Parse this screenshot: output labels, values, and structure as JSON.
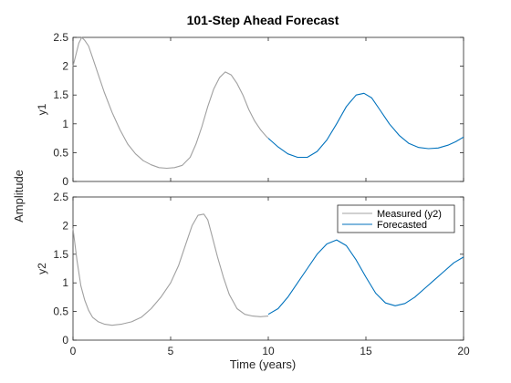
{
  "chart_data": {
    "type": "line",
    "title": "101-Step Ahead Forecast",
    "xlabel": "Time (years)",
    "shared_ylabel": "Amplitude",
    "xlim": [
      0,
      20
    ],
    "xticks": [
      "0",
      "5",
      "10",
      "15",
      "20"
    ],
    "colors": {
      "measured": "#a0a0a0",
      "forecast": "#0072bd"
    },
    "subplots": [
      {
        "ylabel": "y1",
        "ylim": [
          0,
          2.5
        ],
        "yticks": [
          "0",
          "0.5",
          "1",
          "1.5",
          "2",
          "2.5"
        ],
        "legend": null,
        "series": [
          {
            "role": "measured",
            "x": [
              0,
              0.15,
              0.3,
              0.45,
              0.6,
              0.8,
              1.0,
              1.3,
              1.6,
              2.0,
              2.4,
              2.8,
              3.2,
              3.6,
              4.0,
              4.4,
              4.8,
              5.2,
              5.6,
              6.0,
              6.3,
              6.6,
              6.9,
              7.2,
              7.5,
              7.8,
              8.1,
              8.4,
              8.7,
              9.0,
              9.3,
              9.6,
              9.9,
              10.0
            ],
            "y": [
              2.0,
              2.2,
              2.4,
              2.5,
              2.45,
              2.35,
              2.15,
              1.85,
              1.55,
              1.2,
              0.9,
              0.65,
              0.48,
              0.36,
              0.29,
              0.24,
              0.23,
              0.24,
              0.28,
              0.42,
              0.65,
              0.95,
              1.3,
              1.6,
              1.8,
              1.9,
              1.85,
              1.7,
              1.5,
              1.25,
              1.05,
              0.9,
              0.78,
              0.75
            ]
          },
          {
            "role": "forecast",
            "x": [
              10.0,
              10.5,
              11.0,
              11.5,
              12.0,
              12.5,
              13.0,
              13.5,
              14.0,
              14.5,
              14.9,
              15.3,
              15.7,
              16.2,
              16.7,
              17.2,
              17.7,
              18.2,
              18.7,
              19.2,
              19.6,
              20.0
            ],
            "y": [
              0.75,
              0.6,
              0.48,
              0.42,
              0.42,
              0.52,
              0.72,
              1.0,
              1.3,
              1.5,
              1.53,
              1.45,
              1.25,
              1.0,
              0.8,
              0.66,
              0.59,
              0.57,
              0.58,
              0.63,
              0.69,
              0.77
            ]
          }
        ]
      },
      {
        "ylabel": "y2",
        "ylim": [
          0,
          2.5
        ],
        "yticks": [
          "0",
          "0.5",
          "1",
          "1.5",
          "2",
          "2.5"
        ],
        "legend": {
          "position": "top-right",
          "entries": [
            "Measured (y2)",
            "Forecasted"
          ]
        },
        "series": [
          {
            "role": "measured",
            "x": [
              0,
              0.2,
              0.4,
              0.6,
              0.8,
              1.0,
              1.3,
              1.6,
              2.0,
              2.5,
              3.0,
              3.5,
              4.0,
              4.5,
              5.0,
              5.4,
              5.8,
              6.1,
              6.4,
              6.7,
              6.9,
              7.1,
              7.4,
              7.7,
              8.0,
              8.4,
              8.8,
              9.2,
              9.6,
              10.0
            ],
            "y": [
              1.95,
              1.4,
              0.95,
              0.7,
              0.52,
              0.4,
              0.32,
              0.28,
              0.26,
              0.28,
              0.32,
              0.4,
              0.55,
              0.75,
              1.0,
              1.3,
              1.7,
              2.0,
              2.18,
              2.2,
              2.1,
              1.85,
              1.45,
              1.1,
              0.8,
              0.55,
              0.45,
              0.42,
              0.41,
              0.42
            ]
          },
          {
            "role": "forecast",
            "x": [
              10.0,
              10.5,
              11.0,
              11.5,
              12.0,
              12.5,
              13.0,
              13.5,
              14.0,
              14.5,
              15.0,
              15.5,
              16.0,
              16.5,
              17.0,
              17.5,
              18.0,
              18.5,
              19.0,
              19.5,
              20.0
            ],
            "y": [
              0.45,
              0.55,
              0.75,
              1.0,
              1.25,
              1.5,
              1.68,
              1.75,
              1.65,
              1.4,
              1.1,
              0.82,
              0.65,
              0.6,
              0.64,
              0.75,
              0.9,
              1.05,
              1.2,
              1.35,
              1.45
            ]
          }
        ]
      }
    ]
  }
}
